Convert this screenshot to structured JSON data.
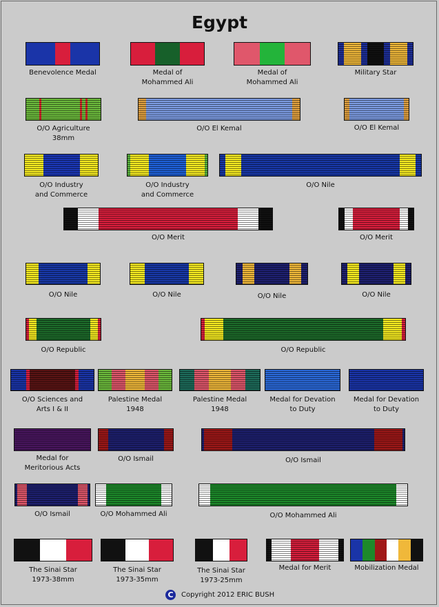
{
  "title": "Egypt",
  "copyright": "Copyright 2012 ERIC BUSH",
  "copyright_symbol": "C",
  "ribbons": [
    {
      "name": "benevolence-medal",
      "label": "Benevolence Medal",
      "stripes": [
        [
          "#1a34a8",
          6
        ],
        [
          "#d81e3c",
          3
        ],
        [
          "#1a34a8",
          6
        ]
      ],
      "stripes_overlay": false
    },
    {
      "name": "medal-of-mohammed-ali-1",
      "label": "Medal of\nMohammed Ali",
      "stripes": [
        [
          "#d81e3c",
          1
        ],
        [
          "#17602a",
          1
        ],
        [
          "#d81e3c",
          1
        ]
      ],
      "stripes_overlay": false
    },
    {
      "name": "medal-of-mohammed-ali-2",
      "label": "Medal of\nMohammed Ali",
      "stripes": [
        [
          "#e0576b",
          1
        ],
        [
          "#23b43a",
          1
        ],
        [
          "#e0576b",
          1
        ]
      ],
      "stripes_overlay": false
    },
    {
      "name": "military-star",
      "label": "Military Star",
      "stripes": [
        [
          "#1e2f9a",
          1
        ],
        [
          "#f0b83a",
          3
        ],
        [
          "#1e2f9a",
          1
        ],
        [
          "#111111",
          3
        ],
        [
          "#1e2f9a",
          1
        ],
        [
          "#f0b83a",
          3
        ],
        [
          "#1e2f9a",
          1
        ]
      ],
      "stripes_overlay": true
    },
    {
      "name": "oo-agriculture-38mm",
      "label": "O/O Agriculture\n38mm",
      "stripes": [
        [
          "#6cba3c",
          2
        ],
        [
          "#d42a2a",
          0.3
        ],
        [
          "#6cba3c",
          6
        ],
        [
          "#d42a2a",
          0.3
        ],
        [
          "#6cba3c",
          0.6
        ],
        [
          "#d42a2a",
          0.3
        ],
        [
          "#6cba3c",
          2
        ]
      ],
      "stripes_overlay": true
    },
    {
      "name": "oo-el-kemal-1",
      "label": "O/O El Kemal",
      "stripes": [
        [
          "#e0a040",
          1
        ],
        [
          "#7d9ce3",
          20
        ],
        [
          "#e0a040",
          1
        ]
      ],
      "stripes_overlay": true
    },
    {
      "name": "oo-el-kemal-2",
      "label": "O/O El Kemal",
      "stripes": [
        [
          "#e0a040",
          1
        ],
        [
          "#7d9ce3",
          12
        ],
        [
          "#e0a040",
          1
        ]
      ],
      "stripes_overlay": true
    },
    {
      "name": "oo-industry-and-commerce-1",
      "label": "O/O Industry\nand Commerce",
      "stripes": [
        [
          "#f5ea20",
          3
        ],
        [
          "#1b37b6",
          6
        ],
        [
          "#f5ea20",
          3
        ]
      ],
      "stripes_overlay": true
    },
    {
      "name": "oo-industry-and-commerce-2",
      "label": "O/O Industry\nand Commerce",
      "stripes": [
        [
          "#5ab43c",
          0.5
        ],
        [
          "#f5ea20",
          3
        ],
        [
          "#1e60d8",
          6
        ],
        [
          "#f5ea20",
          3
        ],
        [
          "#5ab43c",
          0.5
        ]
      ],
      "stripes_overlay": true
    },
    {
      "name": "oo-nile-wide",
      "label": "O/O Nile",
      "stripes": [
        [
          "#1838a8",
          1
        ],
        [
          "#f5ea20",
          3
        ],
        [
          "#1838a8",
          30
        ],
        [
          "#f5ea20",
          3
        ],
        [
          "#1838a8",
          1
        ]
      ],
      "stripes_overlay": true
    },
    {
      "name": "oo-merit-wide",
      "label": "O/O Merit",
      "stripes": [
        [
          "#111111",
          2
        ],
        [
          "#ffffff",
          3
        ],
        [
          "#d81e3c",
          20
        ],
        [
          "#ffffff",
          3
        ],
        [
          "#111111",
          2
        ]
      ],
      "stripes_overlay": true
    },
    {
      "name": "oo-merit-small",
      "label": "O/O Merit",
      "stripes": [
        [
          "#111111",
          1
        ],
        [
          "#ffffff",
          1.4
        ],
        [
          "#d81e3c",
          8
        ],
        [
          "#ffffff",
          1.4
        ],
        [
          "#111111",
          1
        ]
      ],
      "stripes_overlay": true
    },
    {
      "name": "oo-nile-1",
      "label": "O/O Nile",
      "stripes": [
        [
          "#f5ea20",
          2
        ],
        [
          "#1838a8",
          8
        ],
        [
          "#f5ea20",
          2
        ]
      ],
      "stripes_overlay": true
    },
    {
      "name": "oo-nile-2",
      "label": "O/O Nile",
      "stripes": [
        [
          "#f5ea20",
          2
        ],
        [
          "#1838a8",
          6
        ],
        [
          "#f5ea20",
          2
        ]
      ],
      "stripes_overlay": true
    },
    {
      "name": "oo-nile-3",
      "label": "O/O Nile",
      "stripes": [
        [
          "#1e2070",
          1
        ],
        [
          "#f0b83a",
          2
        ],
        [
          "#1e2070",
          6
        ],
        [
          "#f0b83a",
          2
        ],
        [
          "#1e2070",
          1
        ]
      ],
      "stripes_overlay": true
    },
    {
      "name": "oo-nile-4",
      "label": "O/O Nile",
      "stripes": [
        [
          "#1e2070",
          1
        ],
        [
          "#f5ea20",
          2
        ],
        [
          "#1e2070",
          6
        ],
        [
          "#f5ea20",
          2
        ],
        [
          "#1e2070",
          1
        ]
      ],
      "stripes_overlay": true
    },
    {
      "name": "oo-republic-1",
      "label": "O/O Republic",
      "stripes": [
        [
          "#d81e3c",
          0.5
        ],
        [
          "#f5ea20",
          1.5
        ],
        [
          "#1d6b2a",
          10
        ],
        [
          "#f5ea20",
          1.5
        ],
        [
          "#d81e3c",
          0.5
        ]
      ],
      "stripes_overlay": true
    },
    {
      "name": "oo-republic-2",
      "label": "O/O Republic",
      "stripes": [
        [
          "#d81e3c",
          0.5
        ],
        [
          "#f5ea20",
          3
        ],
        [
          "#1d6b2a",
          25
        ],
        [
          "#f5ea20",
          3
        ],
        [
          "#d81e3c",
          0.5
        ]
      ],
      "stripes_overlay": true
    },
    {
      "name": "oo-sciences-and-arts",
      "label": "O/O Sciences and\nArts I & II",
      "stripes": [
        [
          "#1a34a8",
          2
        ],
        [
          "#d81e3c",
          0.5
        ],
        [
          "#5a1414",
          6
        ],
        [
          "#d81e3c",
          0.5
        ],
        [
          "#1a34a8",
          2
        ]
      ],
      "stripes_overlay": true
    },
    {
      "name": "palestine-medal-1948-1",
      "label": "Palestine Medal\n1948",
      "stripes": [
        [
          "#6cba3c",
          2
        ],
        [
          "#e0576b",
          2
        ],
        [
          "#f0b83a",
          3
        ],
        [
          "#e0576b",
          2
        ],
        [
          "#6cba3c",
          2
        ]
      ],
      "stripes_overlay": true
    },
    {
      "name": "palestine-medal-1948-2",
      "label": "Palestine Medal\n1948",
      "stripes": [
        [
          "#1d6b5a",
          2
        ],
        [
          "#e0576b",
          2
        ],
        [
          "#f0b83a",
          3
        ],
        [
          "#e0576b",
          2
        ],
        [
          "#1d6b5a",
          2
        ]
      ],
      "stripes_overlay": true
    },
    {
      "name": "medal-for-devotion-to-duty-1",
      "label": "Medal for Devation\nto Duty",
      "stripes": [
        [
          "#2a68d8",
          1
        ]
      ],
      "stripes_overlay": true
    },
    {
      "name": "medal-for-devotion-to-duty-2",
      "label": "Medal for Devation\nto Duty",
      "stripes": [
        [
          "#1a34a8",
          1
        ]
      ],
      "stripes_overlay": true
    },
    {
      "name": "medal-for-meritorious-acts",
      "label": "Medal for\nMeritorious Acts",
      "stripes": [
        [
          "#4a1660",
          1
        ]
      ],
      "stripes_overlay": true
    },
    {
      "name": "oo-ismail-1",
      "label": "O/O Ismail",
      "stripes": [
        [
          "#a01818",
          1
        ],
        [
          "#1e2070",
          6
        ],
        [
          "#a01818",
          1
        ]
      ],
      "stripes_overlay": true
    },
    {
      "name": "oo-ismail-wide",
      "label": "O/O Ismail",
      "stripes": [
        [
          "#1e2070",
          0.3
        ],
        [
          "#a01818",
          4
        ],
        [
          "#1e2070",
          20
        ],
        [
          "#a01818",
          4
        ],
        [
          "#1e2070",
          0.3
        ]
      ],
      "stripes_overlay": true
    },
    {
      "name": "oo-ismail-2",
      "label": "O/O Ismail",
      "stripes": [
        [
          "#1e2070",
          0.3
        ],
        [
          "#e0576b",
          1.6
        ],
        [
          "#1e2070",
          8
        ],
        [
          "#e0576b",
          1.6
        ],
        [
          "#1e2070",
          0.3
        ]
      ],
      "stripes_overlay": true
    },
    {
      "name": "oo-mohammed-ali-1",
      "label": "O/O Mohammed Ali",
      "stripes": [
        [
          "#ffffff",
          1.5
        ],
        [
          "#1d8a2a",
          8
        ],
        [
          "#ffffff",
          1.5
        ]
      ],
      "stripes_overlay": true
    },
    {
      "name": "oo-mohammed-ali-wide",
      "label": "O/O Mohammed Ali",
      "stripes": [
        [
          "#ffffff",
          1.5
        ],
        [
          "#1d8a2a",
          26
        ],
        [
          "#ffffff",
          1.5
        ]
      ],
      "stripes_overlay": true
    },
    {
      "name": "sinai-star-38mm",
      "label": "The Sinai Star\n1973-38mm",
      "stripes": [
        [
          "#111111",
          1
        ],
        [
          "#ffffff",
          1
        ],
        [
          "#d81e3c",
          1
        ]
      ],
      "stripes_overlay": false
    },
    {
      "name": "sinai-star-35mm",
      "label": "The Sinai Star\n1973-35mm",
      "stripes": [
        [
          "#111111",
          1
        ],
        [
          "#ffffff",
          1
        ],
        [
          "#d81e3c",
          1
        ]
      ],
      "stripes_overlay": false
    },
    {
      "name": "sinai-star-25mm",
      "label": "The Sinai Star\n1973-25mm",
      "stripes": [
        [
          "#111111",
          1
        ],
        [
          "#ffffff",
          1
        ],
        [
          "#d81e3c",
          1
        ]
      ],
      "stripes_overlay": false
    },
    {
      "name": "medal-for-merit",
      "label": "Medal for Merit",
      "stripes": [
        [
          "#111111",
          0.4
        ],
        [
          "#ffffff",
          1.6
        ],
        [
          "#d81e3c",
          2.4
        ],
        [
          "#ffffff",
          1.6
        ],
        [
          "#111111",
          0.4
        ]
      ],
      "stripes_overlay": true
    },
    {
      "name": "mobilization-medal",
      "label": "Mobilization Medal",
      "stripes": [
        [
          "#1a34a8",
          1
        ],
        [
          "#1d8a2a",
          1
        ],
        [
          "#a01818",
          1
        ],
        [
          "#ffffff",
          1
        ],
        [
          "#f0b83a",
          1
        ],
        [
          "#111111",
          1
        ]
      ],
      "stripes_overlay": false
    }
  ]
}
